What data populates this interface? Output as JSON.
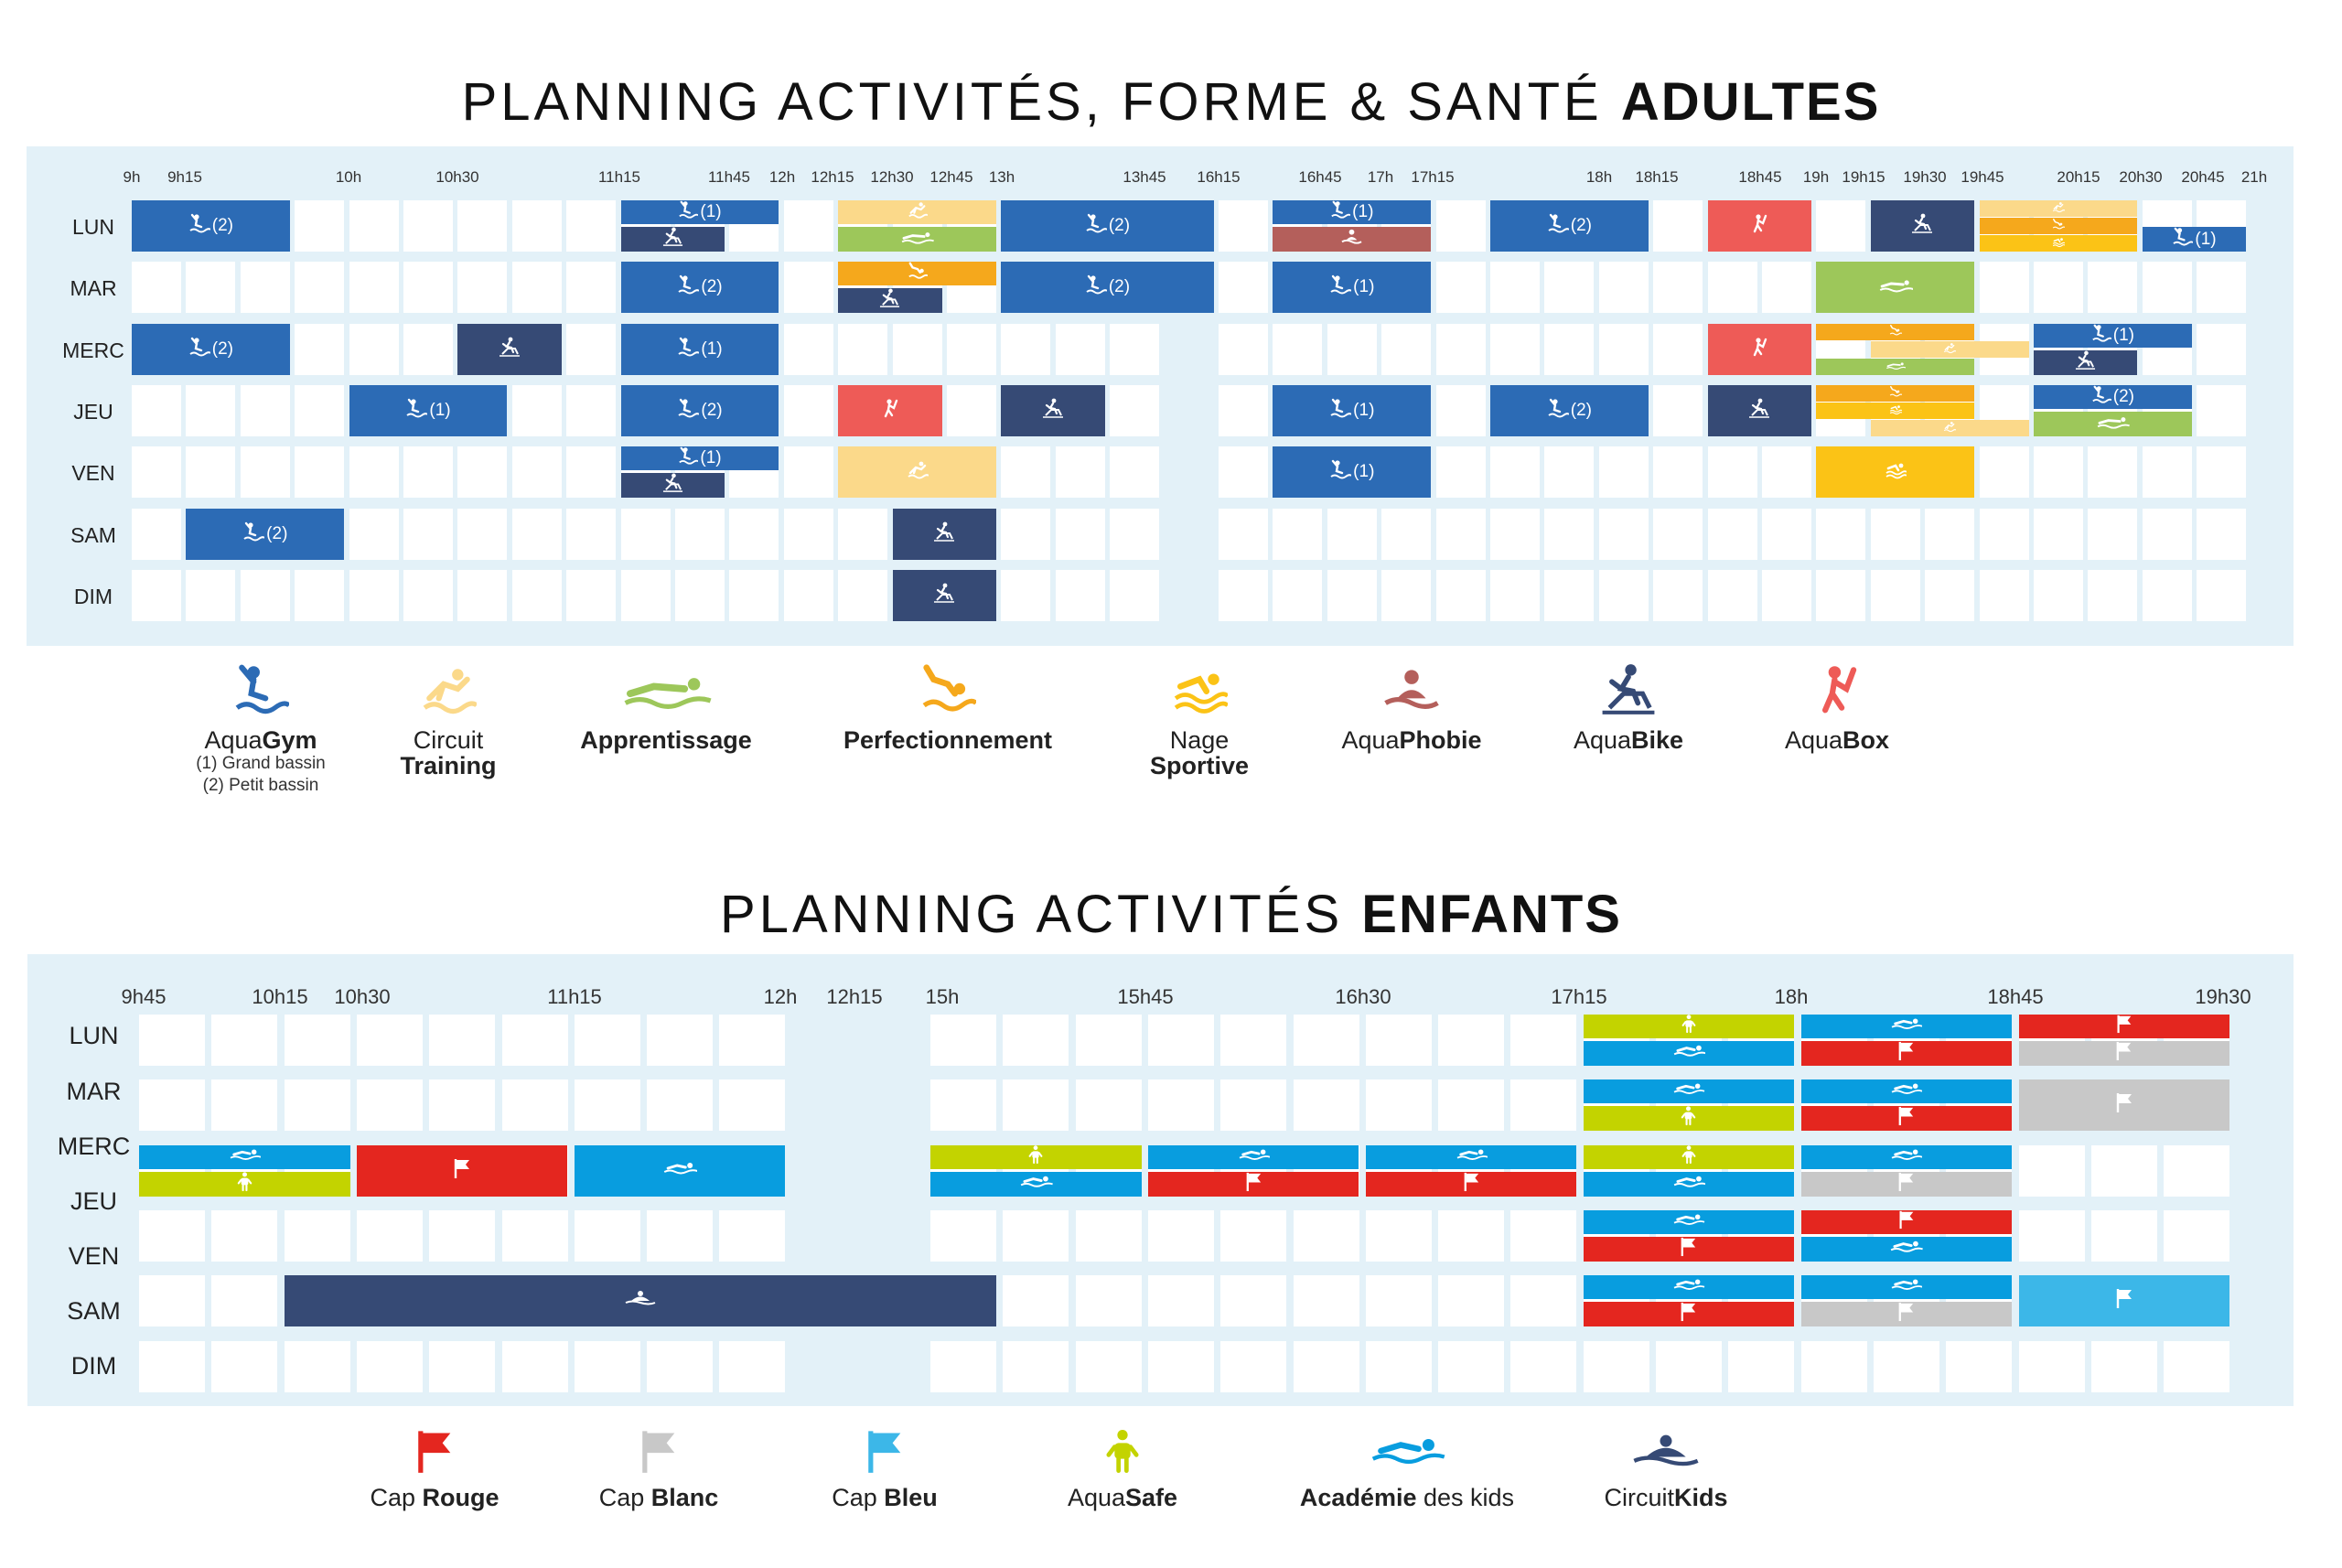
{
  "adults": {
    "title_light": "PLANNING ACTIVITÉS, FORME & SANTÉ",
    "title_bold": "ADULTES",
    "time_labels": [
      "9h",
      "9h15",
      "10h",
      "10h30",
      "11h15",
      "11h45",
      "12h",
      "12h15",
      "12h30",
      "12h45",
      "13h",
      "13h45",
      "16h15",
      "16h45",
      "17h",
      "17h15",
      "18h",
      "18h15",
      "18h45",
      "19h",
      "19h15",
      "19h30",
      "19h45",
      "20h15",
      "20h30",
      "20h45",
      "21h"
    ],
    "days": [
      "LUN",
      "MAR",
      "MERC",
      "JEU",
      "VEN",
      "SAM",
      "DIM"
    ],
    "bars": [
      {
        "activity": "aquagym",
        "day": 0,
        "start": 0,
        "end": 3,
        "label": "(2)"
      },
      {
        "activity": "aquagym",
        "day": 0,
        "start": 9,
        "end": 12,
        "label": "(1)",
        "half": "top"
      },
      {
        "activity": "aquabike",
        "day": 0,
        "start": 9,
        "end": 11,
        "half": "bottom"
      },
      {
        "activity": "circuit",
        "day": 0,
        "start": 13,
        "end": 16,
        "half": "top"
      },
      {
        "activity": "apprentissage",
        "day": 0,
        "start": 13,
        "end": 16,
        "half": "bottom"
      },
      {
        "activity": "aquagym",
        "day": 0,
        "start": 16,
        "end": 19,
        "label": "(2)"
      },
      {
        "activity": "aquagym",
        "day": 0,
        "start": 20,
        "end": 23,
        "label": "(1)",
        "half": "top"
      },
      {
        "activity": "aquaphobie",
        "day": 0,
        "start": 20,
        "end": 23,
        "half": "bottom"
      },
      {
        "activity": "aquagym",
        "day": 0,
        "start": 24,
        "end": 27,
        "label": "(2)"
      },
      {
        "activity": "aquabox",
        "day": 0,
        "start": 28,
        "end": 30
      },
      {
        "activity": "aquabike",
        "day": 0,
        "start": 31,
        "end": 33
      },
      {
        "activity": "circuit",
        "day": 0,
        "start": 33,
        "end": 36,
        "half": "q1"
      },
      {
        "activity": "perfectionnement",
        "day": 0,
        "start": 33,
        "end": 36,
        "half": "q2"
      },
      {
        "activity": "nage",
        "day": 0,
        "start": 33,
        "end": 36,
        "half": "q3"
      },
      {
        "activity": "aquagym",
        "day": 0,
        "start": 36,
        "end": 39,
        "label": "(1)",
        "half": "bottom"
      },
      {
        "activity": "aquagym",
        "day": 1,
        "start": 9,
        "end": 12,
        "label": "(2)"
      },
      {
        "activity": "perfectionnement",
        "day": 1,
        "start": 13,
        "end": 16,
        "half": "top"
      },
      {
        "activity": "aquabike",
        "day": 1,
        "start": 13,
        "end": 15,
        "half": "bottom"
      },
      {
        "activity": "aquagym",
        "day": 1,
        "start": 16,
        "end": 19,
        "label": "(2)"
      },
      {
        "activity": "aquagym",
        "day": 1,
        "start": 20,
        "end": 23,
        "label": "(1)"
      },
      {
        "activity": "apprentissage",
        "day": 1,
        "start": 30,
        "end": 33
      },
      {
        "activity": "aquagym",
        "day": 2,
        "start": 0,
        "end": 3,
        "label": "(2)"
      },
      {
        "activity": "aquabike",
        "day": 2,
        "start": 6,
        "end": 8
      },
      {
        "activity": "aquagym",
        "day": 2,
        "start": 9,
        "end": 12,
        "label": "(1)"
      },
      {
        "activity": "aquabox",
        "day": 2,
        "start": 28,
        "end": 30
      },
      {
        "activity": "perfectionnement",
        "day": 2,
        "start": 30,
        "end": 33,
        "half": "q1"
      },
      {
        "activity": "circuit",
        "day": 2,
        "start": 31,
        "end": 34,
        "half": "q2"
      },
      {
        "activity": "apprentissage",
        "day": 2,
        "start": 30,
        "end": 33,
        "half": "q3"
      },
      {
        "activity": "aquagym",
        "day": 2,
        "start": 34,
        "end": 37,
        "label": "(1)",
        "half": "top"
      },
      {
        "activity": "aquabike",
        "day": 2,
        "start": 34,
        "end": 36,
        "half": "bottom"
      },
      {
        "activity": "aquagym",
        "day": 3,
        "start": 4,
        "end": 7,
        "label": "(1)"
      },
      {
        "activity": "aquagym",
        "day": 3,
        "start": 9,
        "end": 12,
        "label": "(2)"
      },
      {
        "activity": "aquabox",
        "day": 3,
        "start": 13,
        "end": 15
      },
      {
        "activity": "aquabike",
        "day": 3,
        "start": 16,
        "end": 18
      },
      {
        "activity": "aquagym",
        "day": 3,
        "start": 20,
        "end": 23,
        "label": "(1)"
      },
      {
        "activity": "aquagym",
        "day": 3,
        "start": 24,
        "end": 27,
        "label": "(2)"
      },
      {
        "activity": "aquabike",
        "day": 3,
        "start": 28,
        "end": 30
      },
      {
        "activity": "perfectionnement",
        "day": 3,
        "start": 30,
        "end": 33,
        "half": "q1"
      },
      {
        "activity": "nage",
        "day": 3,
        "start": 30,
        "end": 33,
        "half": "q2"
      },
      {
        "activity": "circuit",
        "day": 3,
        "start": 31,
        "end": 34,
        "half": "q3"
      },
      {
        "activity": "aquagym",
        "day": 3,
        "start": 34,
        "end": 37,
        "label": "(2)",
        "half": "top"
      },
      {
        "activity": "apprentissage",
        "day": 3,
        "start": 34,
        "end": 37,
        "half": "bottom"
      },
      {
        "activity": "aquagym",
        "day": 4,
        "start": 9,
        "end": 12,
        "label": "(1)",
        "half": "top"
      },
      {
        "activity": "aquabike",
        "day": 4,
        "start": 9,
        "end": 11,
        "half": "bottom"
      },
      {
        "activity": "circuit",
        "day": 4,
        "start": 13,
        "end": 16
      },
      {
        "activity": "aquagym",
        "day": 4,
        "start": 20,
        "end": 23,
        "label": "(1)"
      },
      {
        "activity": "nage",
        "day": 4,
        "start": 30,
        "end": 33
      },
      {
        "activity": "aquagym",
        "day": 5,
        "start": 1,
        "end": 4,
        "label": "(2)"
      },
      {
        "activity": "aquabike",
        "day": 5,
        "start": 14,
        "end": 16
      },
      {
        "activity": "aquabike",
        "day": 6,
        "start": 14,
        "end": 16
      }
    ],
    "legend": [
      {
        "key": "aquagym",
        "light": "Aqua",
        "bold": "Gym",
        "sub1": "(1) Grand bassin",
        "sub2": "(2) Petit bassin"
      },
      {
        "key": "circuit",
        "light": "Circuit",
        "bold": "Training",
        "stack": true
      },
      {
        "key": "apprentissage",
        "light": "",
        "bold": "Apprentissage"
      },
      {
        "key": "perfectionnement",
        "light": "",
        "bold": "Perfectionnement"
      },
      {
        "key": "nage",
        "light": "Nage",
        "bold": "Sportive",
        "stack": true
      },
      {
        "key": "aquaphobie",
        "light": "Aqua",
        "bold": "Phobie"
      },
      {
        "key": "aquabike",
        "light": "Aqua",
        "bold": "Bike"
      },
      {
        "key": "aquabox",
        "light": "Aqua",
        "bold": "Box"
      }
    ],
    "colors": {
      "aquagym": "#2c6bb5",
      "circuit": "#fbd98a",
      "apprentissage": "#9dc75a",
      "perfectionnement": "#f5a81c",
      "nage": "#fbc316",
      "aquaphobie": "#b45f5b",
      "aquabike": "#364a75",
      "aquabox": "#ee5b57"
    }
  },
  "kids": {
    "title_light": "PLANNING ACTIVITÉS",
    "title_bold": "ENFANTS",
    "time_labels": [
      "9h45",
      "10h15",
      "10h30",
      "11h15",
      "12h",
      "12h15",
      "15h",
      "15h45",
      "16h30",
      "17h15",
      "18h",
      "18h45",
      "19h30"
    ],
    "days": [
      "LUN",
      "MAR",
      "MERC",
      "JEU",
      "VEN",
      "SAM",
      "DIM"
    ],
    "bars": [
      {
        "activity": "aquasafe",
        "day": 0,
        "start": 18,
        "end": 21,
        "half": "top"
      },
      {
        "activity": "academie",
        "day": 0,
        "start": 18,
        "end": 21,
        "half": "bottom"
      },
      {
        "activity": "academie",
        "day": 0,
        "start": 21,
        "end": 24,
        "half": "top"
      },
      {
        "activity": "caprouge",
        "day": 0,
        "start": 21,
        "end": 24,
        "half": "bottom"
      },
      {
        "activity": "caprouge",
        "day": 0,
        "start": 24,
        "end": 27,
        "half": "top"
      },
      {
        "activity": "capblanc",
        "day": 0,
        "start": 24,
        "end": 27,
        "half": "bottom"
      },
      {
        "activity": "academie",
        "day": 1,
        "start": 18,
        "end": 21,
        "half": "top"
      },
      {
        "activity": "aquasafe",
        "day": 1,
        "start": 18,
        "end": 21,
        "half": "bottom"
      },
      {
        "activity": "academie",
        "day": 1,
        "start": 21,
        "end": 24,
        "half": "top"
      },
      {
        "activity": "caprouge",
        "day": 1,
        "start": 21,
        "end": 24,
        "half": "bottom"
      },
      {
        "activity": "capblanc",
        "day": 1,
        "start": 24,
        "end": 27
      },
      {
        "activity": "academie",
        "day": 2,
        "start": 0,
        "end": 3,
        "half": "top"
      },
      {
        "activity": "aquasafe",
        "day": 2,
        "start": 0,
        "end": 3,
        "half": "bottom"
      },
      {
        "activity": "caprouge",
        "day": 2,
        "start": 3,
        "end": 6
      },
      {
        "activity": "academie",
        "day": 2,
        "start": 6,
        "end": 9
      },
      {
        "activity": "aquasafe",
        "day": 2,
        "start": 9,
        "end": 12,
        "half": "top"
      },
      {
        "activity": "academie",
        "day": 2,
        "start": 9,
        "end": 12,
        "half": "bottom"
      },
      {
        "activity": "academie",
        "day": 2,
        "start": 12,
        "end": 15,
        "half": "top"
      },
      {
        "activity": "caprouge",
        "day": 2,
        "start": 12,
        "end": 15,
        "half": "bottom"
      },
      {
        "activity": "academie",
        "day": 2,
        "start": 15,
        "end": 18,
        "half": "top"
      },
      {
        "activity": "caprouge",
        "day": 2,
        "start": 15,
        "end": 18,
        "half": "bottom"
      },
      {
        "activity": "aquasafe",
        "day": 2,
        "start": 18,
        "end": 21,
        "half": "top"
      },
      {
        "activity": "academie",
        "day": 2,
        "start": 18,
        "end": 21,
        "half": "bottom"
      },
      {
        "activity": "academie",
        "day": 2,
        "start": 21,
        "end": 24,
        "half": "top"
      },
      {
        "activity": "capblanc",
        "day": 2,
        "start": 21,
        "end": 24,
        "half": "bottom"
      },
      {
        "activity": "academie",
        "day": 3,
        "start": 18,
        "end": 21,
        "half": "top"
      },
      {
        "activity": "caprouge",
        "day": 3,
        "start": 18,
        "end": 21,
        "half": "bottom"
      },
      {
        "activity": "caprouge",
        "day": 3,
        "start": 21,
        "end": 24,
        "half": "top"
      },
      {
        "activity": "academie",
        "day": 3,
        "start": 21,
        "end": 24,
        "half": "bottom"
      },
      {
        "activity": "circuitkids",
        "day": 4,
        "start": 2,
        "end": 10
      },
      {
        "activity": "academie",
        "day": 4,
        "start": 18,
        "end": 21,
        "half": "top"
      },
      {
        "activity": "caprouge",
        "day": 4,
        "start": 18,
        "end": 21,
        "half": "bottom"
      },
      {
        "activity": "academie",
        "day": 4,
        "start": 21,
        "end": 24,
        "half": "top"
      },
      {
        "activity": "capblanc",
        "day": 4,
        "start": 21,
        "end": 24,
        "half": "bottom"
      },
      {
        "activity": "capbleu",
        "day": 4,
        "start": 24,
        "end": 27
      }
    ],
    "legend": [
      {
        "key": "caprouge",
        "light": "Cap ",
        "bold": "Rouge"
      },
      {
        "key": "capblanc",
        "light": "Cap ",
        "bold": "Blanc"
      },
      {
        "key": "capbleu",
        "light": "Cap ",
        "bold": "Bleu"
      },
      {
        "key": "aquasafe",
        "light": "Aqua",
        "bold": "Safe"
      },
      {
        "key": "academie",
        "light": " des kids",
        "bold": "Académie",
        "boldfirst": true
      },
      {
        "key": "circuitkids",
        "light": "Circuit",
        "bold": "Kids"
      }
    ],
    "colors": {
      "caprouge": "#e4261f",
      "capblanc": "#c8c8c8",
      "capbleu": "#3cb7e8",
      "aquasafe": "#c3d300",
      "academie": "#089ddf",
      "circuitkids": "#364a75"
    }
  }
}
